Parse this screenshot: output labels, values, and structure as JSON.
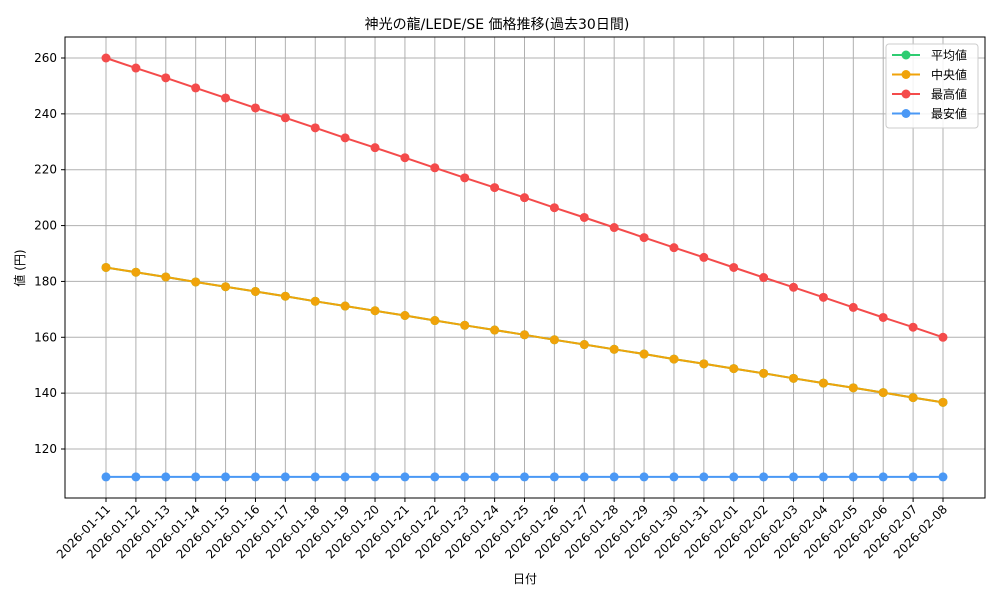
{
  "chart_data": {
    "type": "line",
    "title": "神光の龍/LEDE/SE 価格推移(過去30日間)",
    "xlabel": "日付",
    "ylabel": "値 (円)",
    "ylim": [
      102.5,
      267
    ],
    "yticks": [
      120,
      140,
      160,
      180,
      200,
      220,
      240,
      260
    ],
    "grid": true,
    "legend_position": "upper right",
    "categories": [
      "2026-01-11",
      "2026-01-12",
      "2026-01-13",
      "2026-01-14",
      "2026-01-15",
      "2026-01-16",
      "2026-01-17",
      "2026-01-18",
      "2026-01-19",
      "2026-01-20",
      "2026-01-21",
      "2026-01-22",
      "2026-01-23",
      "2026-01-24",
      "2026-01-25",
      "2026-01-26",
      "2026-01-27",
      "2026-01-28",
      "2026-01-29",
      "2026-01-30",
      "2026-01-31",
      "2026-02-01",
      "2026-02-02",
      "2026-02-03",
      "2026-02-04",
      "2026-02-05",
      "2026-02-06",
      "2026-02-07",
      "2026-02-08"
    ],
    "series": [
      {
        "name": "平均値",
        "color": "#2ecc71",
        "values": [
          185,
          183.3,
          181.6,
          179.8,
          178.1,
          176.4,
          174.7,
          172.9,
          171.2,
          169.5,
          167.8,
          166.0,
          164.3,
          162.6,
          160.9,
          159.1,
          157.4,
          155.7,
          154.0,
          152.2,
          150.5,
          148.8,
          147.1,
          145.3,
          143.6,
          141.9,
          140.2,
          138.4,
          136.7
        ]
      },
      {
        "name": "中央値",
        "color": "#f0a30a",
        "values": [
          185,
          183.3,
          181.6,
          179.8,
          178.1,
          176.4,
          174.7,
          172.9,
          171.2,
          169.5,
          167.8,
          166.0,
          164.3,
          162.6,
          160.9,
          159.1,
          157.4,
          155.7,
          154.0,
          152.2,
          150.5,
          148.8,
          147.1,
          145.3,
          143.6,
          141.9,
          140.2,
          138.4,
          136.7
        ]
      },
      {
        "name": "最高値",
        "color": "#f44b4b",
        "values": [
          260,
          256.4,
          252.9,
          249.3,
          245.7,
          242.1,
          238.6,
          235.0,
          231.4,
          227.9,
          224.3,
          220.7,
          217.1,
          213.6,
          210.0,
          206.4,
          202.9,
          199.3,
          195.7,
          192.1,
          188.6,
          185.0,
          181.4,
          177.9,
          174.3,
          170.7,
          167.1,
          163.6,
          160
        ]
      },
      {
        "name": "最安値",
        "color": "#4a98f5",
        "values": [
          110,
          110,
          110,
          110,
          110,
          110,
          110,
          110,
          110,
          110,
          110,
          110,
          110,
          110,
          110,
          110,
          110,
          110,
          110,
          110,
          110,
          110,
          110,
          110,
          110,
          110,
          110,
          110,
          110
        ]
      }
    ]
  }
}
